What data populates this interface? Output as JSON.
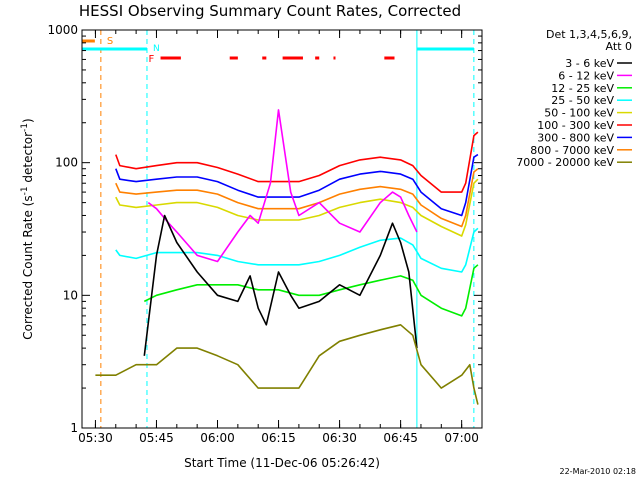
{
  "chart_data": {
    "type": "line",
    "title": "HESSI Observing Summary Count Rates, Corrected",
    "xlabel": "Start Time (11-Dec-06 05:26:42)",
    "ylabel": "Corrected Count Rate (s",
    "ylabel_sup1": "-1",
    "ylabel_mid": " detector",
    "ylabel_sup2": "-1",
    "ylabel_end": ")",
    "yscale": "log",
    "ylim": [
      1,
      1000
    ],
    "xlim": [
      "05:26:42",
      "07:05:00"
    ],
    "x_ticks": [
      "05:30",
      "05:45",
      "06:00",
      "06:15",
      "06:30",
      "06:45",
      "07:00"
    ],
    "y_ticks": [
      "1",
      "10",
      "100",
      "1000"
    ],
    "grid": false,
    "legend": {
      "placement": "right",
      "header_line1": "Det 1,3,4,5,6,9,",
      "header_line2": "Att 0",
      "entries": [
        {
          "label": "3 - 6 keV",
          "color": "#000000"
        },
        {
          "label": "6 - 12 keV",
          "color": "#ff00ff"
        },
        {
          "label": "12 - 25 keV",
          "color": "#00ee00"
        },
        {
          "label": "25 - 50 keV",
          "color": "#00ffff"
        },
        {
          "label": "50 - 100 keV",
          "color": "#d9d900"
        },
        {
          "label": "100 - 300 keV",
          "color": "#ff0000"
        },
        {
          "label": "300 - 800 keV",
          "color": "#0000ff"
        },
        {
          "label": "800 - 7000 keV",
          "color": "#ff8000"
        },
        {
          "label": "7000 - 20000 keV",
          "color": "#808000"
        }
      ]
    },
    "annotations": {
      "saa_label": "S",
      "night_label": "N",
      "flare_label": "F",
      "saa_interval": [
        "05:26:42",
        "05:31:20"
      ],
      "night_intervals": [
        [
          "05:26:42",
          "05:42:40"
        ],
        [
          "06:49:00",
          "07:03:00"
        ]
      ],
      "flare_intervals": [
        [
          "05:46:00",
          "05:51:00"
        ],
        [
          "06:03:00",
          "06:05:00"
        ],
        [
          "06:11:00",
          "06:12:00"
        ],
        [
          "06:16:00",
          "06:21:00"
        ],
        [
          "06:24:00",
          "06:25:00"
        ],
        [
          "06:28:30",
          "06:29:00"
        ],
        [
          "06:41:00",
          "06:43:30"
        ]
      ],
      "vline_orange": [
        "05:31:20"
      ],
      "vline_cyan": [
        "05:42:40",
        "06:49:00",
        "07:03:00"
      ]
    },
    "series": [
      {
        "name": "100 - 300 keV",
        "color": "#ff0000",
        "x": [
          "05:35",
          "05:36",
          "05:40",
          "05:45",
          "05:50",
          "05:55",
          "06:00",
          "06:05",
          "06:10",
          "06:15",
          "06:20",
          "06:25",
          "06:30",
          "06:35",
          "06:40",
          "06:45",
          "06:48",
          "06:50",
          "06:55",
          "07:00",
          "07:01",
          "07:03",
          "07:04"
        ],
        "values": [
          115,
          95,
          90,
          95,
          100,
          100,
          92,
          82,
          72,
          72,
          72,
          80,
          95,
          105,
          110,
          105,
          95,
          80,
          60,
          60,
          70,
          160,
          170
        ]
      },
      {
        "name": "300 - 800 keV",
        "color": "#0000ff",
        "x": [
          "05:35",
          "05:36",
          "05:40",
          "05:45",
          "05:50",
          "05:55",
          "06:00",
          "06:05",
          "06:10",
          "06:15",
          "06:20",
          "06:25",
          "06:30",
          "06:35",
          "06:40",
          "06:45",
          "06:48",
          "06:50",
          "06:55",
          "07:00",
          "07:01",
          "07:03",
          "07:04"
        ],
        "values": [
          90,
          75,
          72,
          75,
          78,
          78,
          72,
          62,
          55,
          55,
          55,
          62,
          75,
          82,
          86,
          82,
          75,
          60,
          45,
          40,
          50,
          110,
          115
        ]
      },
      {
        "name": "800 - 7000 keV",
        "color": "#ff8000",
        "x": [
          "05:35",
          "05:36",
          "05:40",
          "05:45",
          "05:50",
          "05:55",
          "06:00",
          "06:05",
          "06:10",
          "06:15",
          "06:20",
          "06:25",
          "06:30",
          "06:35",
          "06:40",
          "06:45",
          "06:48",
          "06:50",
          "06:55",
          "07:00",
          "07:01",
          "07:03",
          "07:04"
        ],
        "values": [
          70,
          60,
          58,
          60,
          62,
          62,
          58,
          50,
          45,
          45,
          45,
          50,
          58,
          63,
          66,
          63,
          58,
          48,
          38,
          33,
          40,
          85,
          90
        ]
      },
      {
        "name": "50 - 100 keV",
        "color": "#d9d900",
        "x": [
          "05:35",
          "05:36",
          "05:40",
          "05:45",
          "05:50",
          "05:55",
          "06:00",
          "06:05",
          "06:10",
          "06:15",
          "06:20",
          "06:25",
          "06:30",
          "06:35",
          "06:40",
          "06:45",
          "06:48",
          "06:50",
          "06:55",
          "07:00",
          "07:01",
          "07:03",
          "07:04"
        ],
        "values": [
          55,
          48,
          46,
          48,
          50,
          50,
          46,
          40,
          37,
          37,
          37,
          40,
          46,
          50,
          53,
          50,
          46,
          40,
          33,
          28,
          34,
          70,
          75
        ]
      },
      {
        "name": "25 - 50 keV",
        "color": "#00ffff",
        "x": [
          "05:35",
          "05:36",
          "05:40",
          "05:45",
          "05:50",
          "05:55",
          "06:00",
          "06:05",
          "06:10",
          "06:15",
          "06:20",
          "06:25",
          "06:30",
          "06:35",
          "06:40",
          "06:45",
          "06:48",
          "06:50",
          "06:55",
          "07:00",
          "07:01",
          "07:03",
          "07:04"
        ],
        "values": [
          22,
          20,
          19,
          21,
          21,
          21,
          20,
          18,
          17,
          17,
          17,
          18,
          20,
          23,
          26,
          27,
          24,
          19,
          16,
          15,
          17,
          30,
          32
        ]
      },
      {
        "name": "12 - 25 keV",
        "color": "#00ee00",
        "x": [
          "05:42",
          "05:45",
          "05:50",
          "05:55",
          "06:00",
          "06:05",
          "06:10",
          "06:15",
          "06:20",
          "06:25",
          "06:30",
          "06:35",
          "06:40",
          "06:45",
          "06:48",
          "06:50",
          "06:55",
          "07:00",
          "07:01",
          "07:03",
          "07:04"
        ],
        "values": [
          9,
          10,
          11,
          12,
          12,
          12,
          11,
          11,
          10,
          10,
          11,
          12,
          13,
          14,
          13,
          10,
          8,
          7,
          8,
          16,
          17
        ]
      },
      {
        "name": "6 - 12 keV",
        "color": "#ff00ff",
        "x": [
          "05:43",
          "05:45",
          "05:48",
          "05:50",
          "05:55",
          "06:00",
          "06:05",
          "06:08",
          "06:10",
          "06:13",
          "06:15",
          "06:18",
          "06:20",
          "06:25",
          "06:30",
          "06:35",
          "06:40",
          "06:43",
          "06:45",
          "06:47",
          "06:49"
        ],
        "values": [
          50,
          45,
          35,
          30,
          20,
          18,
          30,
          40,
          35,
          70,
          250,
          60,
          40,
          50,
          35,
          30,
          50,
          60,
          55,
          40,
          30
        ]
      },
      {
        "name": "3 - 6 keV",
        "color": "#000000",
        "x": [
          "05:42",
          "05:45",
          "05:47",
          "05:50",
          "05:55",
          "06:00",
          "06:05",
          "06:08",
          "06:10",
          "06:12",
          "06:15",
          "06:18",
          "06:20",
          "06:25",
          "06:30",
          "06:35",
          "06:40",
          "06:43",
          "06:45",
          "06:47",
          "06:49"
        ],
        "values": [
          3.5,
          20,
          40,
          25,
          15,
          10,
          9,
          14,
          8,
          6,
          15,
          10,
          8,
          9,
          12,
          10,
          20,
          35,
          25,
          15,
          4
        ]
      },
      {
        "name": "7000 - 20000 keV",
        "color": "#808000",
        "x": [
          "05:30",
          "05:35",
          "05:40",
          "05:45",
          "05:50",
          "05:55",
          "06:00",
          "06:05",
          "06:10",
          "06:15",
          "06:20",
          "06:25",
          "06:30",
          "06:35",
          "06:40",
          "06:45",
          "06:48",
          "06:50",
          "06:55",
          "07:00",
          "07:02",
          "07:03",
          "07:04"
        ],
        "values": [
          2.5,
          2.5,
          3,
          3,
          4,
          4,
          3.5,
          3,
          2,
          2,
          2,
          3.5,
          4.5,
          5,
          5.5,
          6,
          5,
          3,
          2,
          2.5,
          3,
          2,
          1.5
        ]
      }
    ]
  },
  "footer": {
    "date_stamp": "22-Mar-2010 02:18"
  }
}
